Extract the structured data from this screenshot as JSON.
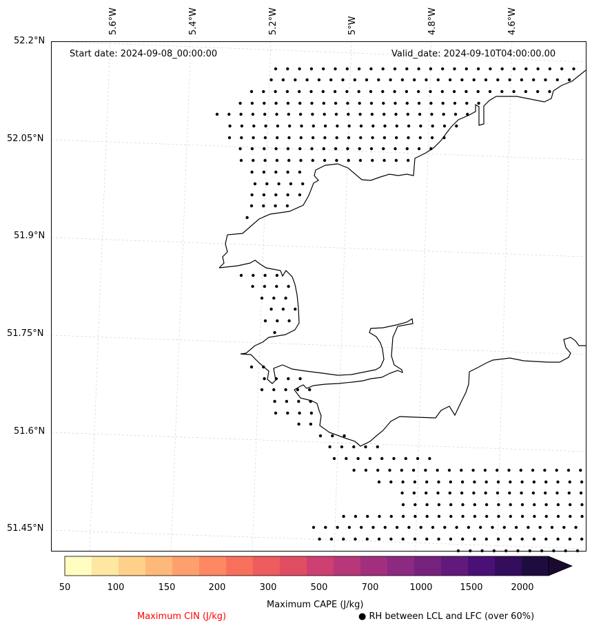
{
  "map": {
    "start_date": "Start date: 2024-09-08_00:00:00",
    "valid_date": "Valid_date: 2024-09-10T04:00:00.00",
    "lon_labels": [
      "5.6°W",
      "5.4°W",
      "5.2°W",
      "5°W",
      "4.8°W",
      "4.6°W"
    ],
    "lat_labels": [
      "52.2°N",
      "52.05°N",
      "51.9°N",
      "51.75°N",
      "51.6°N",
      "51.45°N"
    ]
  },
  "colorbar": {
    "label": "Maximum CAPE (J/kg)",
    "ticks": [
      "50",
      "100",
      "150",
      "200",
      "300",
      "500",
      "700",
      "1000",
      "1500",
      "2000"
    ],
    "colors": [
      "#fffdbf",
      "#fde7a1",
      "#fed08a",
      "#feb87a",
      "#fea06d",
      "#fd8862",
      "#f8705c",
      "#ee5c5e",
      "#e04d63",
      "#cd4071",
      "#b8377a",
      "#a22f7e",
      "#8c2981",
      "#77217f",
      "#611a7c",
      "#4a1076",
      "#340c5c",
      "#1f0c3f",
      "#1a0a30"
    ]
  },
  "legend": {
    "cin_label": "Maximum CIN (J/kg)",
    "rh_label": "● RH between LCL and LFC (over 60%)",
    "cin_color": "#ff0000"
  }
}
